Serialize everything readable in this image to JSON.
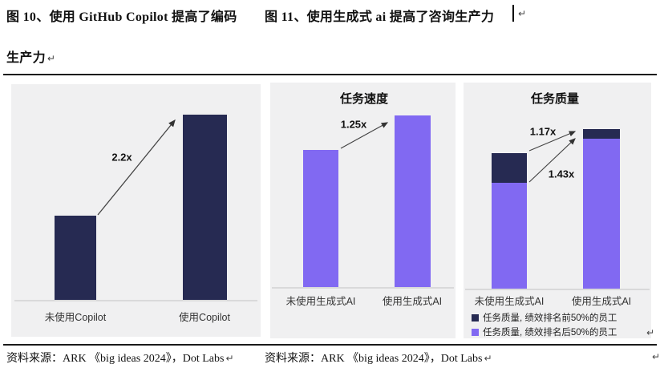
{
  "header": {
    "left_title_line1": "图 10、使用 GitHub Copilot 提高了编码",
    "left_title_line2": "生产力",
    "right_title": "图 11、使用生成式 ai 提高了咨询生产力",
    "return_mark": "↵"
  },
  "footer": {
    "left_source": "资料来源：ARK 《big ideas 2024》，Dot Labs",
    "right_source": "资料来源：ARK 《big ideas 2024》，Dot Labs",
    "return_mark": "↵"
  },
  "colors": {
    "navy": "#262a52",
    "purple": "#8169f2",
    "panel_bg": "#f0f0f1",
    "axis_gray": "#d9d9da"
  },
  "chart_data": [
    {
      "id": "copilot-productivity",
      "type": "bar",
      "title": "",
      "categories": [
        "未使用Copilot",
        "使用Copilot"
      ],
      "values": [
        1,
        2.2
      ],
      "unit": "relative coding productivity (without Copilot = 1)",
      "bar_color": "#262a52",
      "annotations": [
        {
          "label": "2.2x",
          "from": "未使用Copilot",
          "to": "使用Copilot"
        }
      ],
      "grid": false,
      "legend": false
    },
    {
      "id": "task-speed",
      "type": "bar",
      "title": "任务速度",
      "categories": [
        "未使用生成式AI",
        "使用生成式AI"
      ],
      "values": [
        1,
        1.25
      ],
      "unit": "relative task speed (without generative AI = 1)",
      "bar_color": "#8169f2",
      "annotations": [
        {
          "label": "1.25x",
          "from": "未使用生成式AI",
          "to": "使用生成式AI"
        }
      ],
      "grid": false,
      "legend": false
    },
    {
      "id": "task-quality",
      "type": "bar",
      "stacked": true,
      "title": "任务质量",
      "categories": [
        "未使用生成式AI",
        "使用生成式AI"
      ],
      "series": [
        {
          "name": "任务质量, 绩效排名前50%的员工",
          "color": "#262a52",
          "values": [
            0.28,
            0.09
          ]
        },
        {
          "name": "任务质量, 绩效排名后50%的员工",
          "color": "#8169f2",
          "values": [
            1.0,
            1.42
          ]
        }
      ],
      "unit": "relative task quality (bottom-50% employees without generative AI = 1)",
      "annotations": [
        {
          "label": "1.17x",
          "meaning": "total quality increase"
        },
        {
          "label": "1.43x",
          "meaning": "bottom-50% employees quality increase"
        }
      ],
      "grid": false,
      "legend_position": "bottom-left"
    }
  ]
}
